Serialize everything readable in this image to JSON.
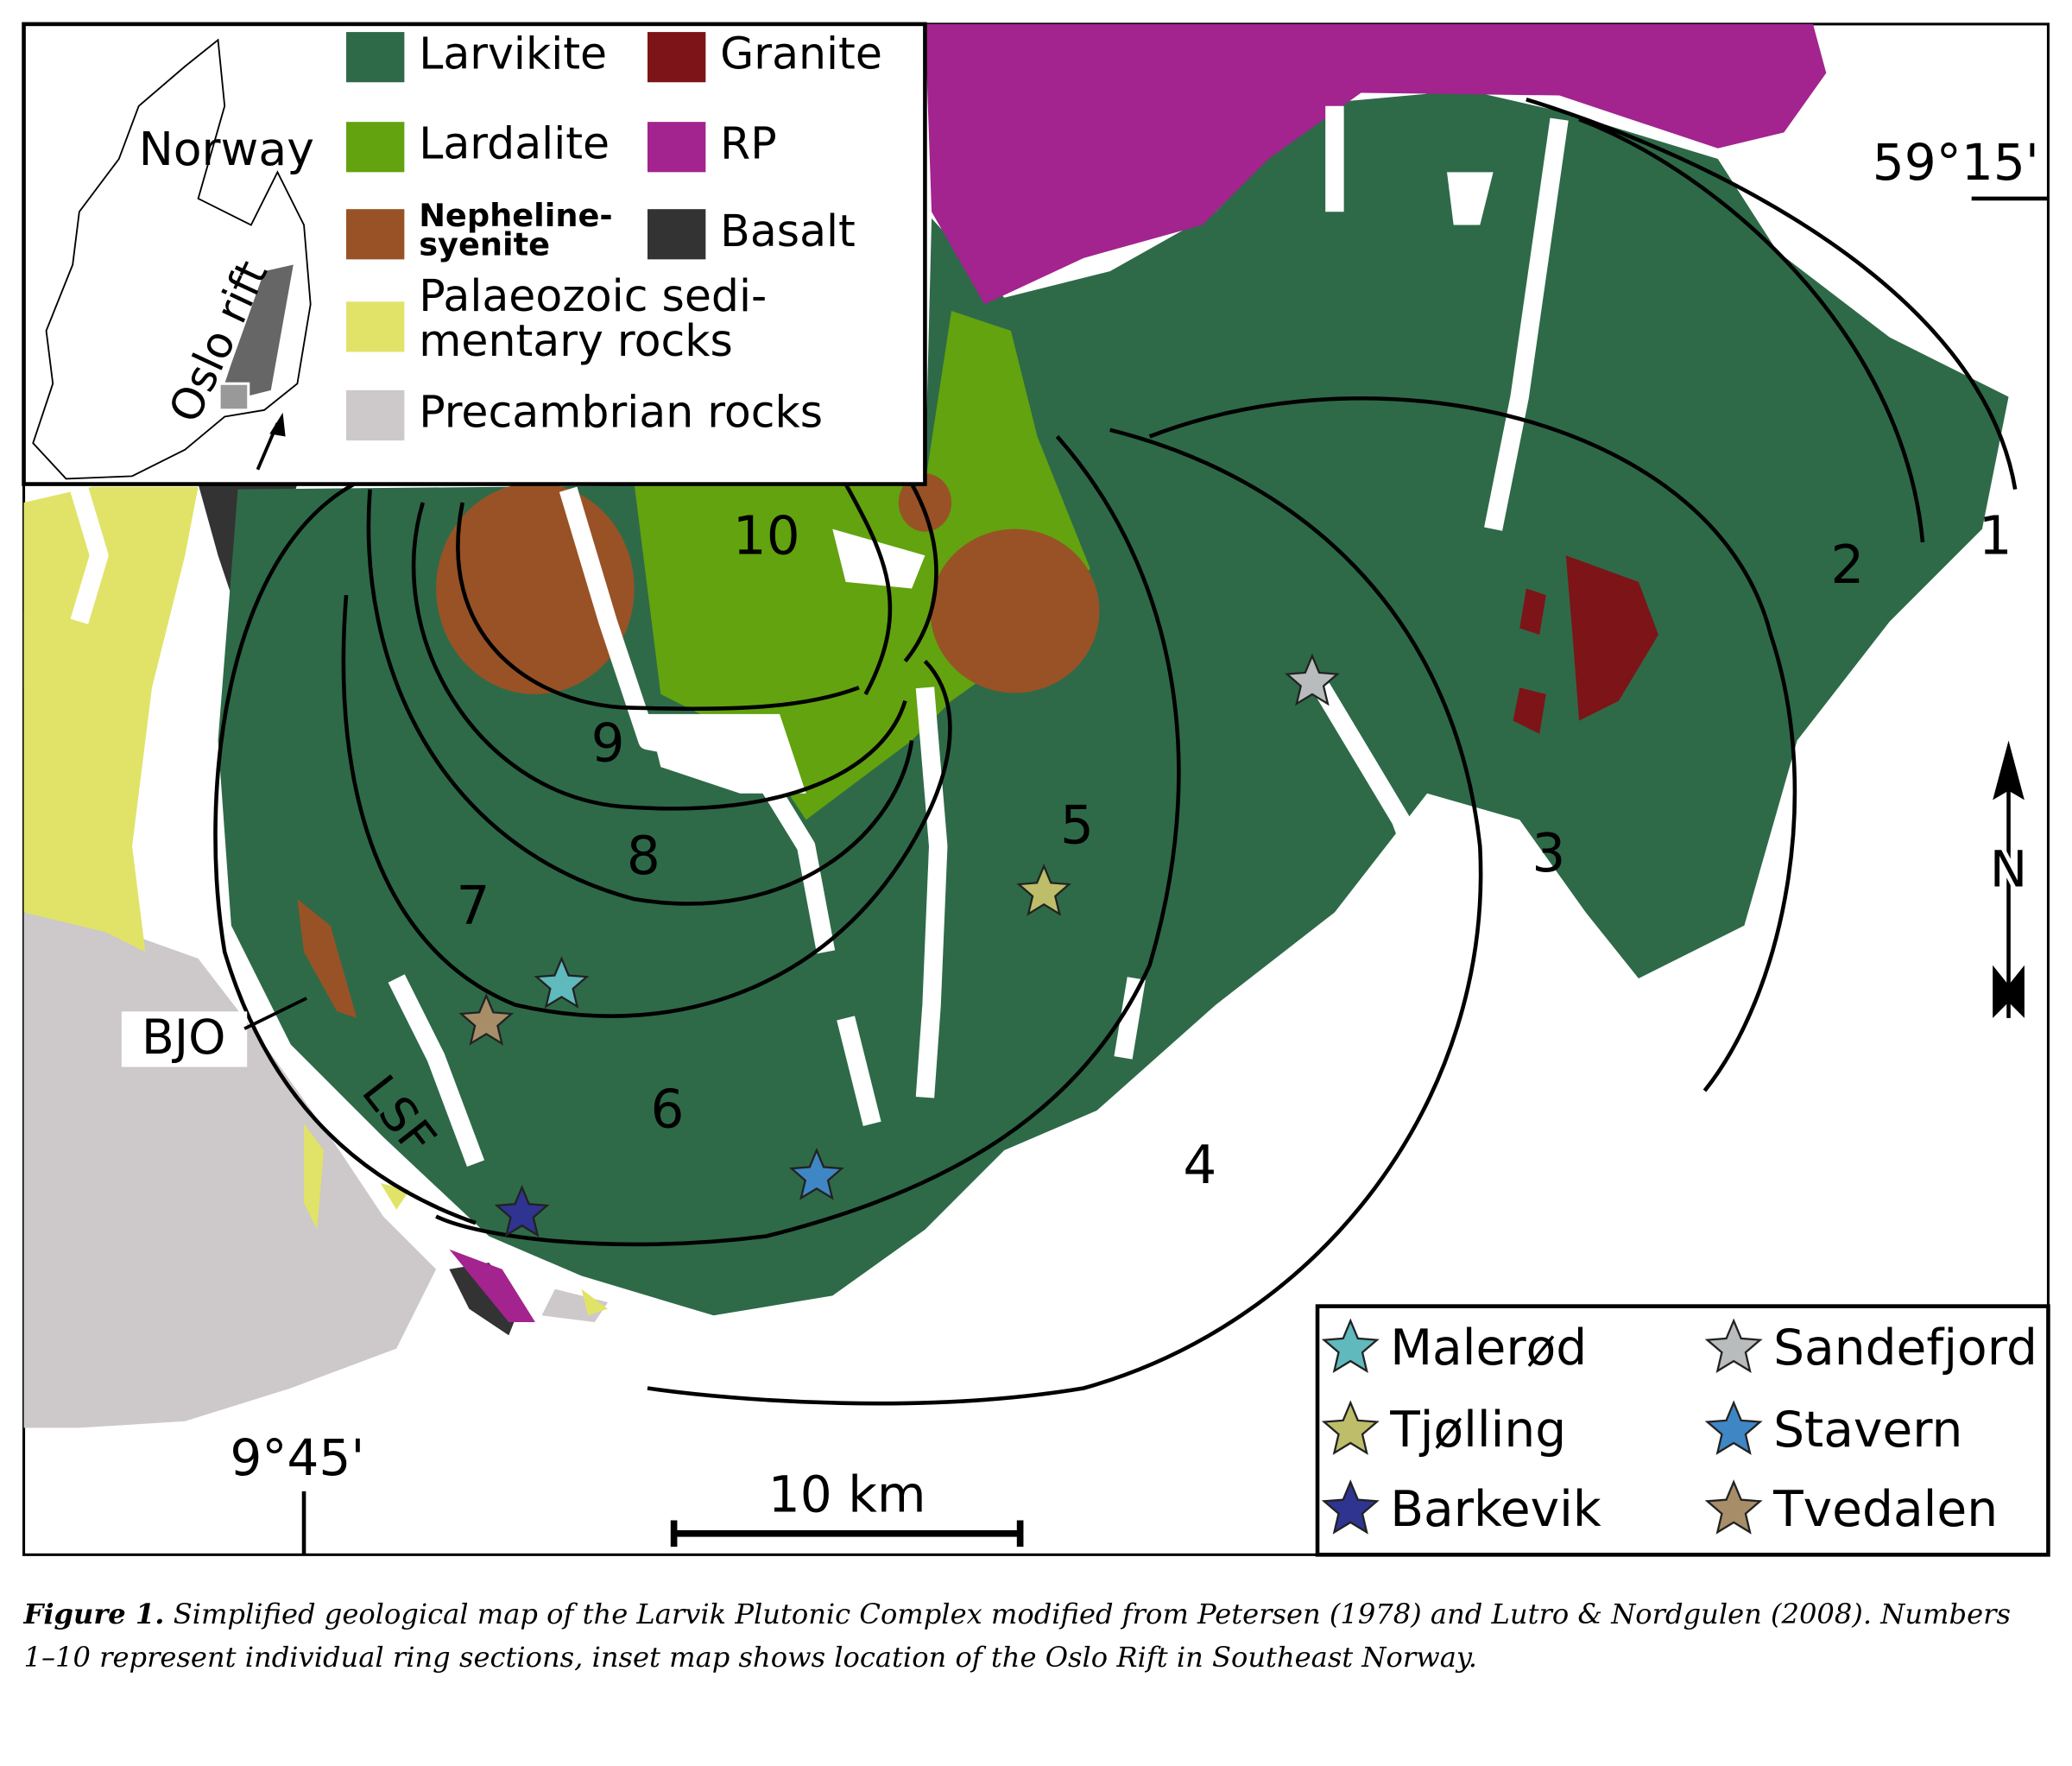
{
  "legend": {
    "items": [
      {
        "lines": [
          "Larvikite"
        ],
        "color": "#2e6a48"
      },
      {
        "lines": [
          "Granite"
        ],
        "color": "#7d1418"
      },
      {
        "lines": [
          "Lardalite"
        ],
        "color": "#62a30f"
      },
      {
        "lines": [
          "RP"
        ],
        "color": "#a3238f"
      },
      {
        "lines": [
          "Nepheline-",
          "syenite"
        ],
        "color": "#985226"
      },
      {
        "lines": [
          "Basalt"
        ],
        "color": "#333333"
      },
      {
        "lines": [
          "Palaeozoic sedi-",
          "mentary rocks"
        ],
        "color": "#e0e367"
      },
      {
        "lines": [
          "Precambrian rocks"
        ],
        "color": "#cdc8c9"
      }
    ]
  },
  "inset": {
    "country": "Norway",
    "rift": "Oslo rift"
  },
  "labels": {
    "latitude": "59°15'",
    "longitude": "9°45'",
    "scale": "10 km",
    "north": "N",
    "bjo": "BJO",
    "lsf": "LSF",
    "ring_sections": [
      "1",
      "2",
      "3",
      "4",
      "5",
      "6",
      "7",
      "8",
      "9",
      "10"
    ]
  },
  "localities": [
    {
      "name": "Malerød",
      "color": "#5fb9bd"
    },
    {
      "name": "Sandefjord",
      "color": "#b9bcbd"
    },
    {
      "name": "Tjølling",
      "color": "#bdbd6a"
    },
    {
      "name": "Stavern",
      "color": "#3f86c5"
    },
    {
      "name": "Barkevik",
      "color": "#2e3490"
    },
    {
      "name": "Tvedalen",
      "color": "#a78e68"
    }
  ],
  "caption": {
    "label": "Figure 1.",
    "lines": [
      "Simplified geological map of the Larvik Plutonic Complex modified from Petersen (1978) and Lutro & Nordgulen (2008). Numbers",
      "1–10 represent individual ring sections, inset map shows location of the Oslo Rift in Southeast Norway."
    ]
  }
}
